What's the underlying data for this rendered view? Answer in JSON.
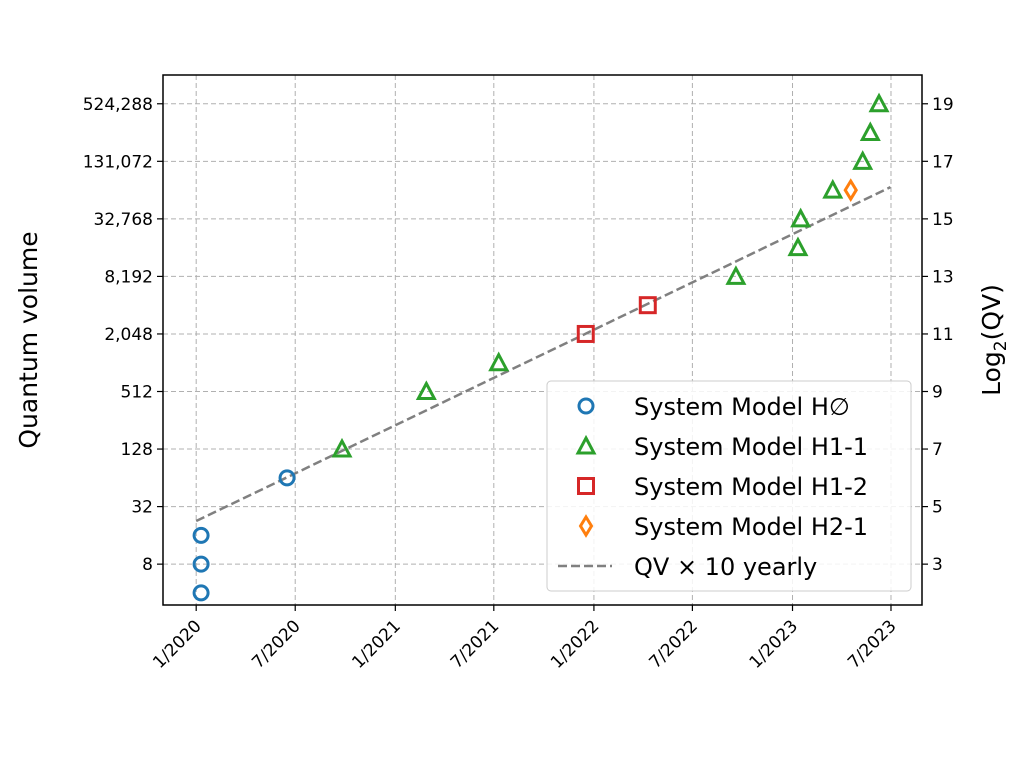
{
  "chart_data": {
    "type": "scatter",
    "title": "",
    "xlabel": "",
    "ylabel": "Quantum volume",
    "ylabel_right": "Log2(QV)",
    "y_scale": "log2",
    "xlim": [
      "2019-11-01",
      "2023-08-27"
    ],
    "ylim_log2": [
      1.58,
      20.0
    ],
    "grid": true,
    "legend_placement": "lower-right",
    "x_ticks": [
      {
        "date": "2020-01-01",
        "label": "1/2020"
      },
      {
        "date": "2020-07-01",
        "label": "7/2020"
      },
      {
        "date": "2021-01-01",
        "label": "1/2021"
      },
      {
        "date": "2021-07-01",
        "label": "7/2021"
      },
      {
        "date": "2022-01-01",
        "label": "1/2022"
      },
      {
        "date": "2022-07-01",
        "label": "7/2022"
      },
      {
        "date": "2023-01-01",
        "label": "1/2023"
      },
      {
        "date": "2023-07-01",
        "label": "7/2023"
      }
    ],
    "y_ticks_left": [
      {
        "qv": 8,
        "label": "8"
      },
      {
        "qv": 32,
        "label": "32"
      },
      {
        "qv": 128,
        "label": "128"
      },
      {
        "qv": 512,
        "label": "512"
      },
      {
        "qv": 2048,
        "label": "2,048"
      },
      {
        "qv": 8192,
        "label": "8,192"
      },
      {
        "qv": 32768,
        "label": "32,768"
      },
      {
        "qv": 131072,
        "label": "131,072"
      },
      {
        "qv": 524288,
        "label": "524,288"
      }
    ],
    "y_ticks_right": [
      "3",
      "5",
      "7",
      "9",
      "11",
      "13",
      "15",
      "17",
      "19"
    ],
    "series": [
      {
        "name": "System Model H∅",
        "marker": "circle",
        "color": "#1f77b4",
        "points": [
          {
            "date": "2020-01-10",
            "qv": 4
          },
          {
            "date": "2020-01-10",
            "qv": 8
          },
          {
            "date": "2020-01-10",
            "qv": 16
          },
          {
            "date": "2020-06-16",
            "qv": 64
          }
        ]
      },
      {
        "name": "System Model H1-1",
        "marker": "triangle",
        "color": "#2ca02c",
        "points": [
          {
            "date": "2020-09-25",
            "qv": 128
          },
          {
            "date": "2021-02-27",
            "qv": 512
          },
          {
            "date": "2021-07-10",
            "qv": 1024
          },
          {
            "date": "2022-09-19",
            "qv": 8192
          },
          {
            "date": "2023-01-11",
            "qv": 16384
          },
          {
            "date": "2023-01-16",
            "qv": 32768
          },
          {
            "date": "2023-03-16",
            "qv": 65536
          },
          {
            "date": "2023-05-10",
            "qv": 131072
          },
          {
            "date": "2023-05-24",
            "qv": 262144
          },
          {
            "date": "2023-06-09",
            "qv": 524288
          }
        ]
      },
      {
        "name": "System Model H1-2",
        "marker": "square",
        "color": "#d62728",
        "points": [
          {
            "date": "2021-12-17",
            "qv": 2048
          },
          {
            "date": "2022-04-10",
            "qv": 4096
          }
        ]
      },
      {
        "name": "System Model H2-1",
        "marker": "diamond",
        "color": "#ff7f0e",
        "points": [
          {
            "date": "2023-04-18",
            "qv": 65536
          }
        ]
      }
    ],
    "trend": {
      "name": "QV × 10 yearly",
      "color": "#808080",
      "style": "dashed",
      "start": {
        "date": "2020-01-01",
        "qv": 22.6
      },
      "factor_per_year": 10,
      "end_date": "2023-06-30"
    }
  }
}
